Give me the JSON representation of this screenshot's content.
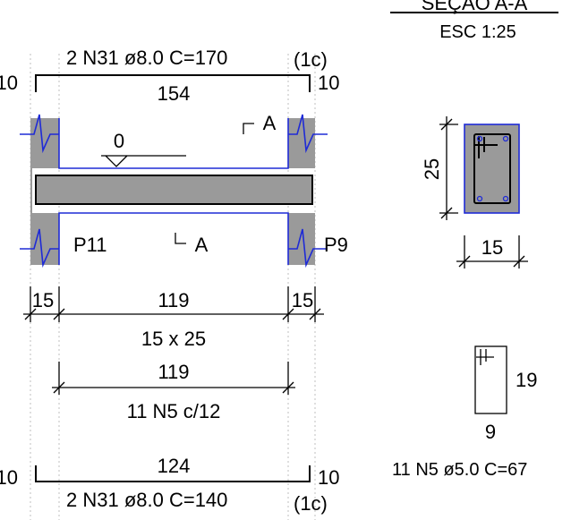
{
  "section": {
    "title": "SEÇÃO A-A",
    "scale": "ESC 1:25",
    "height_dim": "25",
    "width_dim": "15"
  },
  "top_bar": {
    "label": "2 N31 ø8.0 C=170",
    "layer": "(1c)",
    "length": "154",
    "hook_left": "10",
    "hook_right": "10"
  },
  "beam": {
    "level": "0",
    "cut_label_top": "A",
    "cut_label_bottom": "A",
    "support_left": "P11",
    "support_right": "P9"
  },
  "span_dims": {
    "left": "15",
    "middle": "119",
    "right": "15",
    "section_size": "15 x 25"
  },
  "stirrup_dist": {
    "length": "119",
    "label": "11 N5 c/12"
  },
  "stirrup_detail": {
    "height": "19",
    "width": "9",
    "label": "11 N5 ø5.0 C=67"
  },
  "bottom_bar": {
    "label": "2 N31 ø8.0 C=140",
    "layer": "(1c)",
    "length": "124",
    "hook_left": "10",
    "hook_right": "10"
  }
}
